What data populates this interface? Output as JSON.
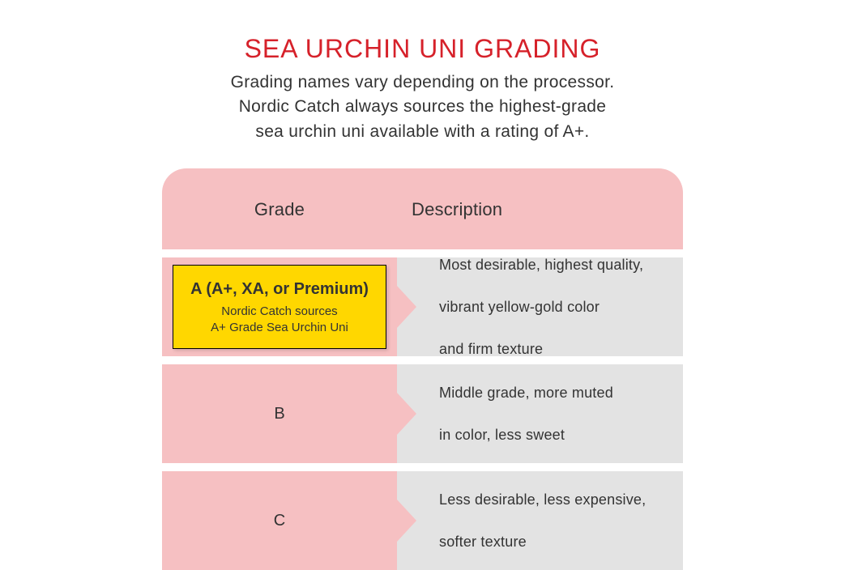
{
  "colors": {
    "title": "#d6212a",
    "text": "#333333",
    "header_bg": "#f6c0c2",
    "grade_bg": "#f6c0c2",
    "desc_bg": "#e3e3e3",
    "highlight_bg": "#ffd700",
    "white": "#ffffff"
  },
  "title": "SEA URCHIN UNI GRADING",
  "subtitle_line1": "Grading names vary depending on the processor.",
  "subtitle_line2": "Nordic Catch always sources the highest-grade",
  "subtitle_line3": "sea urchin uni available with a rating of A+.",
  "headers": {
    "grade": "Grade",
    "description": "Description"
  },
  "rows": [
    {
      "highlighted": true,
      "grade_title": "A (A+, XA, or Premium)",
      "grade_sub_line1": "Nordic Catch sources",
      "grade_sub_line2": "A+ Grade Sea Urchin Uni",
      "desc_line1": "Most desirable, highest quality,",
      "desc_line2": "vibrant yellow-gold color",
      "desc_line3": "and firm texture"
    },
    {
      "highlighted": false,
      "grade_title": "B",
      "desc_line1": "Middle grade, more muted",
      "desc_line2": "in color, less sweet"
    },
    {
      "highlighted": false,
      "grade_title": "C",
      "desc_line1": "Less desirable, less expensive,",
      "desc_line2": "softer texture"
    }
  ]
}
